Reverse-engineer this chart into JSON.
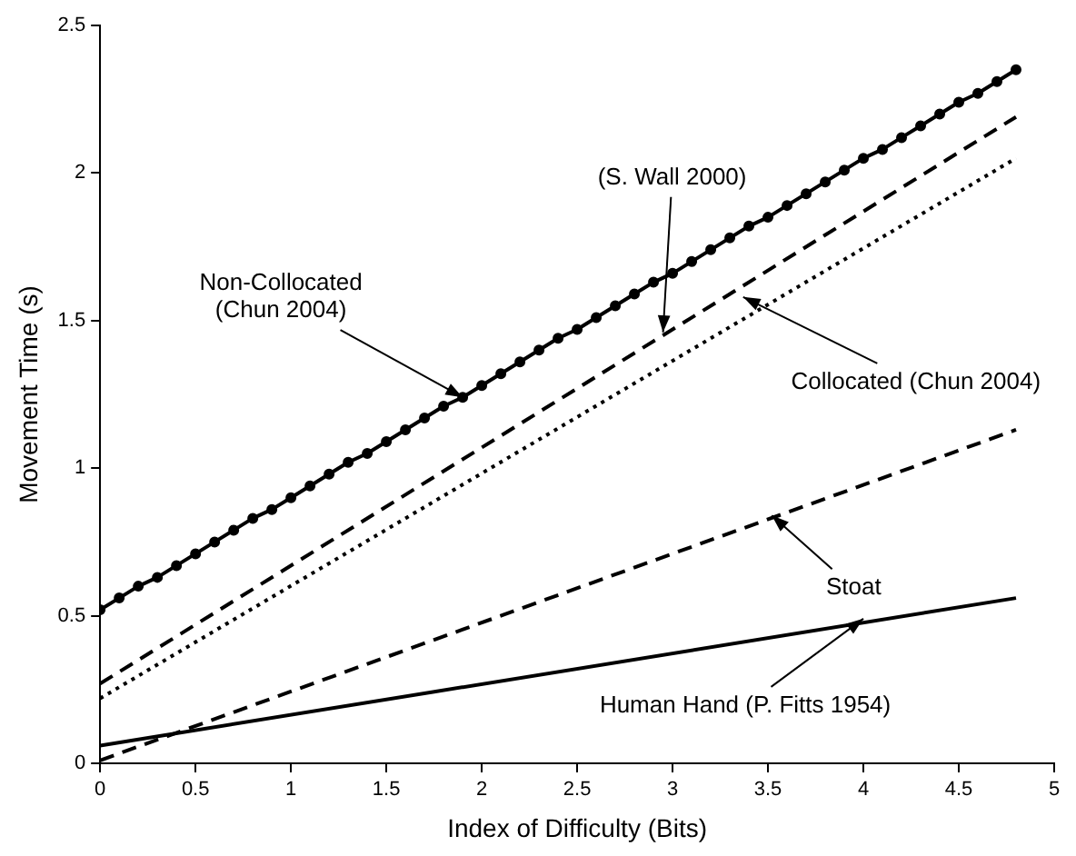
{
  "chart_data": {
    "type": "line",
    "xlabel": "Index of Difficulty (Bits)",
    "ylabel": "Movement Time (s)",
    "xlim": [
      0,
      5
    ],
    "xticks": [
      0,
      0.5,
      1,
      1.5,
      2,
      2.5,
      3,
      3.5,
      4,
      4.5,
      5
    ],
    "ylim": [
      0,
      2.5
    ],
    "yticks": [
      0,
      0.5,
      1,
      1.5,
      2,
      2.5
    ],
    "grid": false,
    "legend": false,
    "marker": "none",
    "series": [
      {
        "color": "#000000",
        "marker": "circle",
        "line_style": "solid",
        "x": [
          0,
          0.1,
          0.2,
          0.3,
          0.4,
          0.5,
          0.6,
          0.7,
          0.8,
          0.9,
          1,
          1.1,
          1.2,
          1.3,
          1.4,
          1.5,
          1.6,
          1.7,
          1.8,
          1.9,
          2,
          2.1,
          2.2,
          2.3,
          2.4,
          2.5,
          2.6,
          2.7,
          2.8,
          2.9,
          3,
          3.1,
          3.2,
          3.3,
          3.4,
          3.5,
          3.6,
          3.7,
          3.8,
          3.9,
          4,
          4.1,
          4.2,
          4.3,
          4.4,
          4.5,
          4.6,
          4.7,
          4.8
        ],
        "values": [
          0.52,
          0.56,
          0.6,
          0.63,
          0.67,
          0.71,
          0.75,
          0.79,
          0.83,
          0.86,
          0.9,
          0.94,
          0.98,
          1.02,
          1.05,
          1.09,
          1.13,
          1.17,
          1.21,
          1.24,
          1.28,
          1.32,
          1.36,
          1.4,
          1.44,
          1.47,
          1.51,
          1.55,
          1.59,
          1.63,
          1.66,
          1.7,
          1.74,
          1.78,
          1.82,
          1.85,
          1.89,
          1.93,
          1.97,
          2.01,
          2.05,
          2.08,
          2.12,
          2.16,
          2.2,
          2.24,
          2.27,
          2.31,
          2.35
        ]
      },
      {
        "color": "#000000",
        "line_style": "dashed",
        "x": [
          0,
          4.8
        ],
        "values": [
          0.27,
          2.19
        ]
      },
      {
        "color": "#000000",
        "line_style": "dotted",
        "x": [
          0,
          4.8
        ],
        "values": [
          0.22,
          2.05
        ]
      },
      {
        "color": "#000000",
        "line_style": "dashed",
        "x": [
          0,
          4.8
        ],
        "values": [
          0.01,
          1.13
        ]
      },
      {
        "color": "#000000",
        "line_style": "solid",
        "x": [
          0,
          4.8
        ],
        "values": [
          0.06,
          0.56
        ]
      }
    ],
    "annotations": [
      {
        "text": "Non-Collocated\n(Chun 2004)",
        "x": 1.9,
        "y": 1.24
      },
      {
        "text": "(S. Wall 2000)",
        "x": 2.95,
        "y": 1.46
      },
      {
        "text": "Collocated (Chun 2004)",
        "x": 3.37,
        "y": 1.58
      },
      {
        "text": "Stoat",
        "x": 3.52,
        "y": 0.84
      },
      {
        "text": "Human Hand (P. Fitts 1954)",
        "x": 4.0,
        "y": 0.49
      }
    ]
  }
}
